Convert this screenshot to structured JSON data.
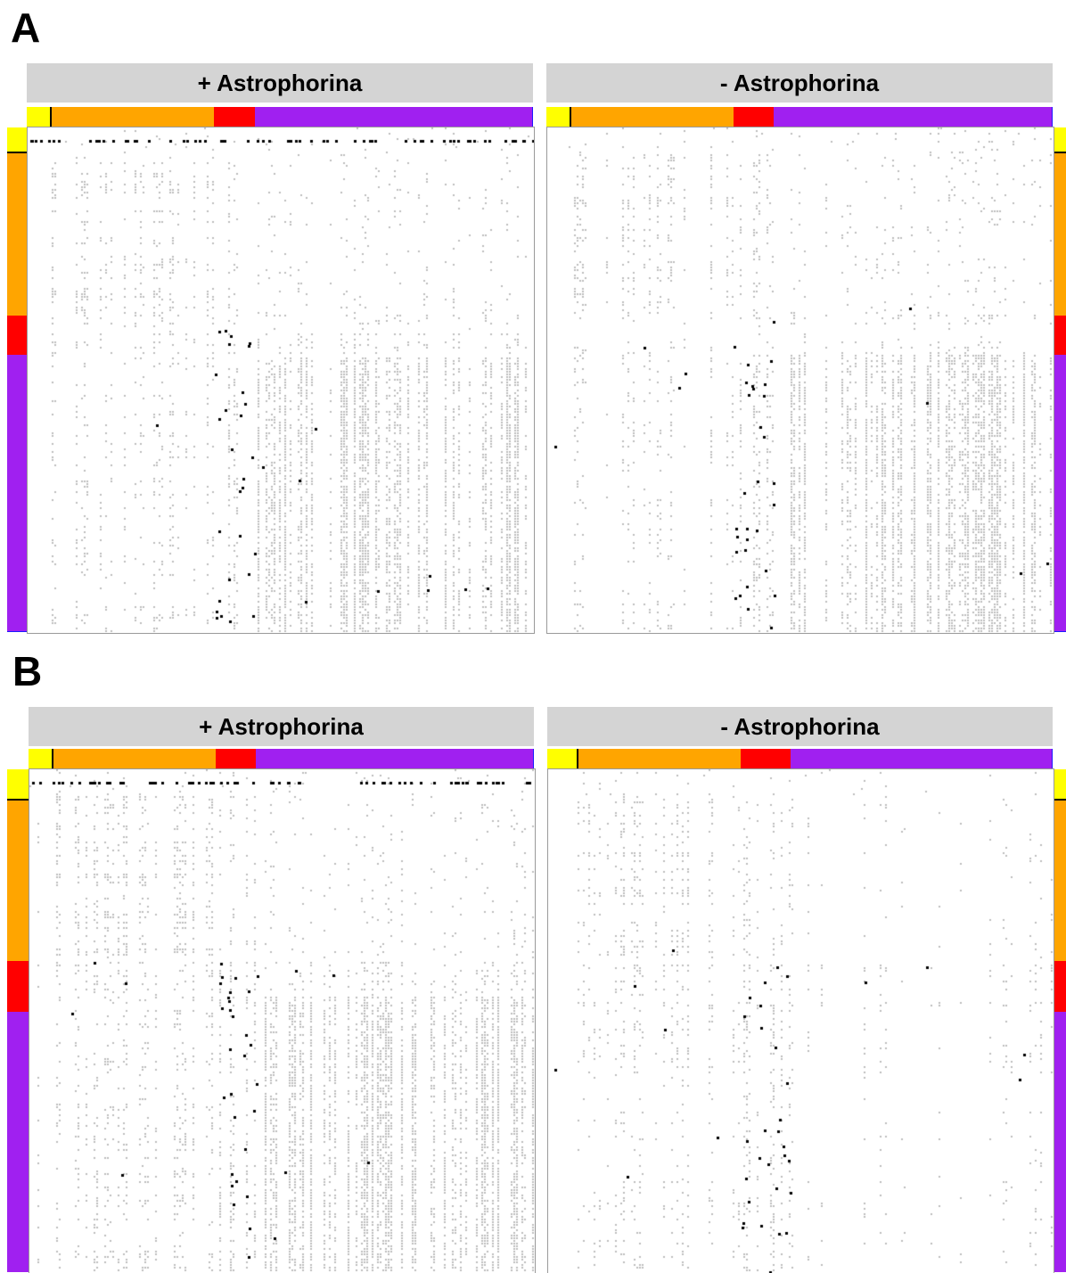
{
  "figure": {
    "panels": [
      {
        "letter": "A",
        "plots": [
          {
            "title": "+ Astrophorina",
            "variant": "plus",
            "seed": 11
          },
          {
            "title": "- Astrophorina",
            "variant": "minus",
            "seed": 23
          }
        ]
      },
      {
        "letter": "B",
        "plots": [
          {
            "title": "+ Astrophorina",
            "variant": "plus",
            "seed": 37
          },
          {
            "title": "- Astrophorina",
            "variant": "minusB",
            "seed": 53
          }
        ]
      }
    ],
    "group_colors": {
      "yellow": "#ffff00",
      "orange": "#ffa500",
      "red": "#ff0000",
      "purple": "#a020f0",
      "blue": "#1a1aff",
      "black": "#000000"
    },
    "cell_colors": {
      "background": "#ffffff",
      "gray": "#bdbdbd",
      "black": "#000000"
    }
  }
}
